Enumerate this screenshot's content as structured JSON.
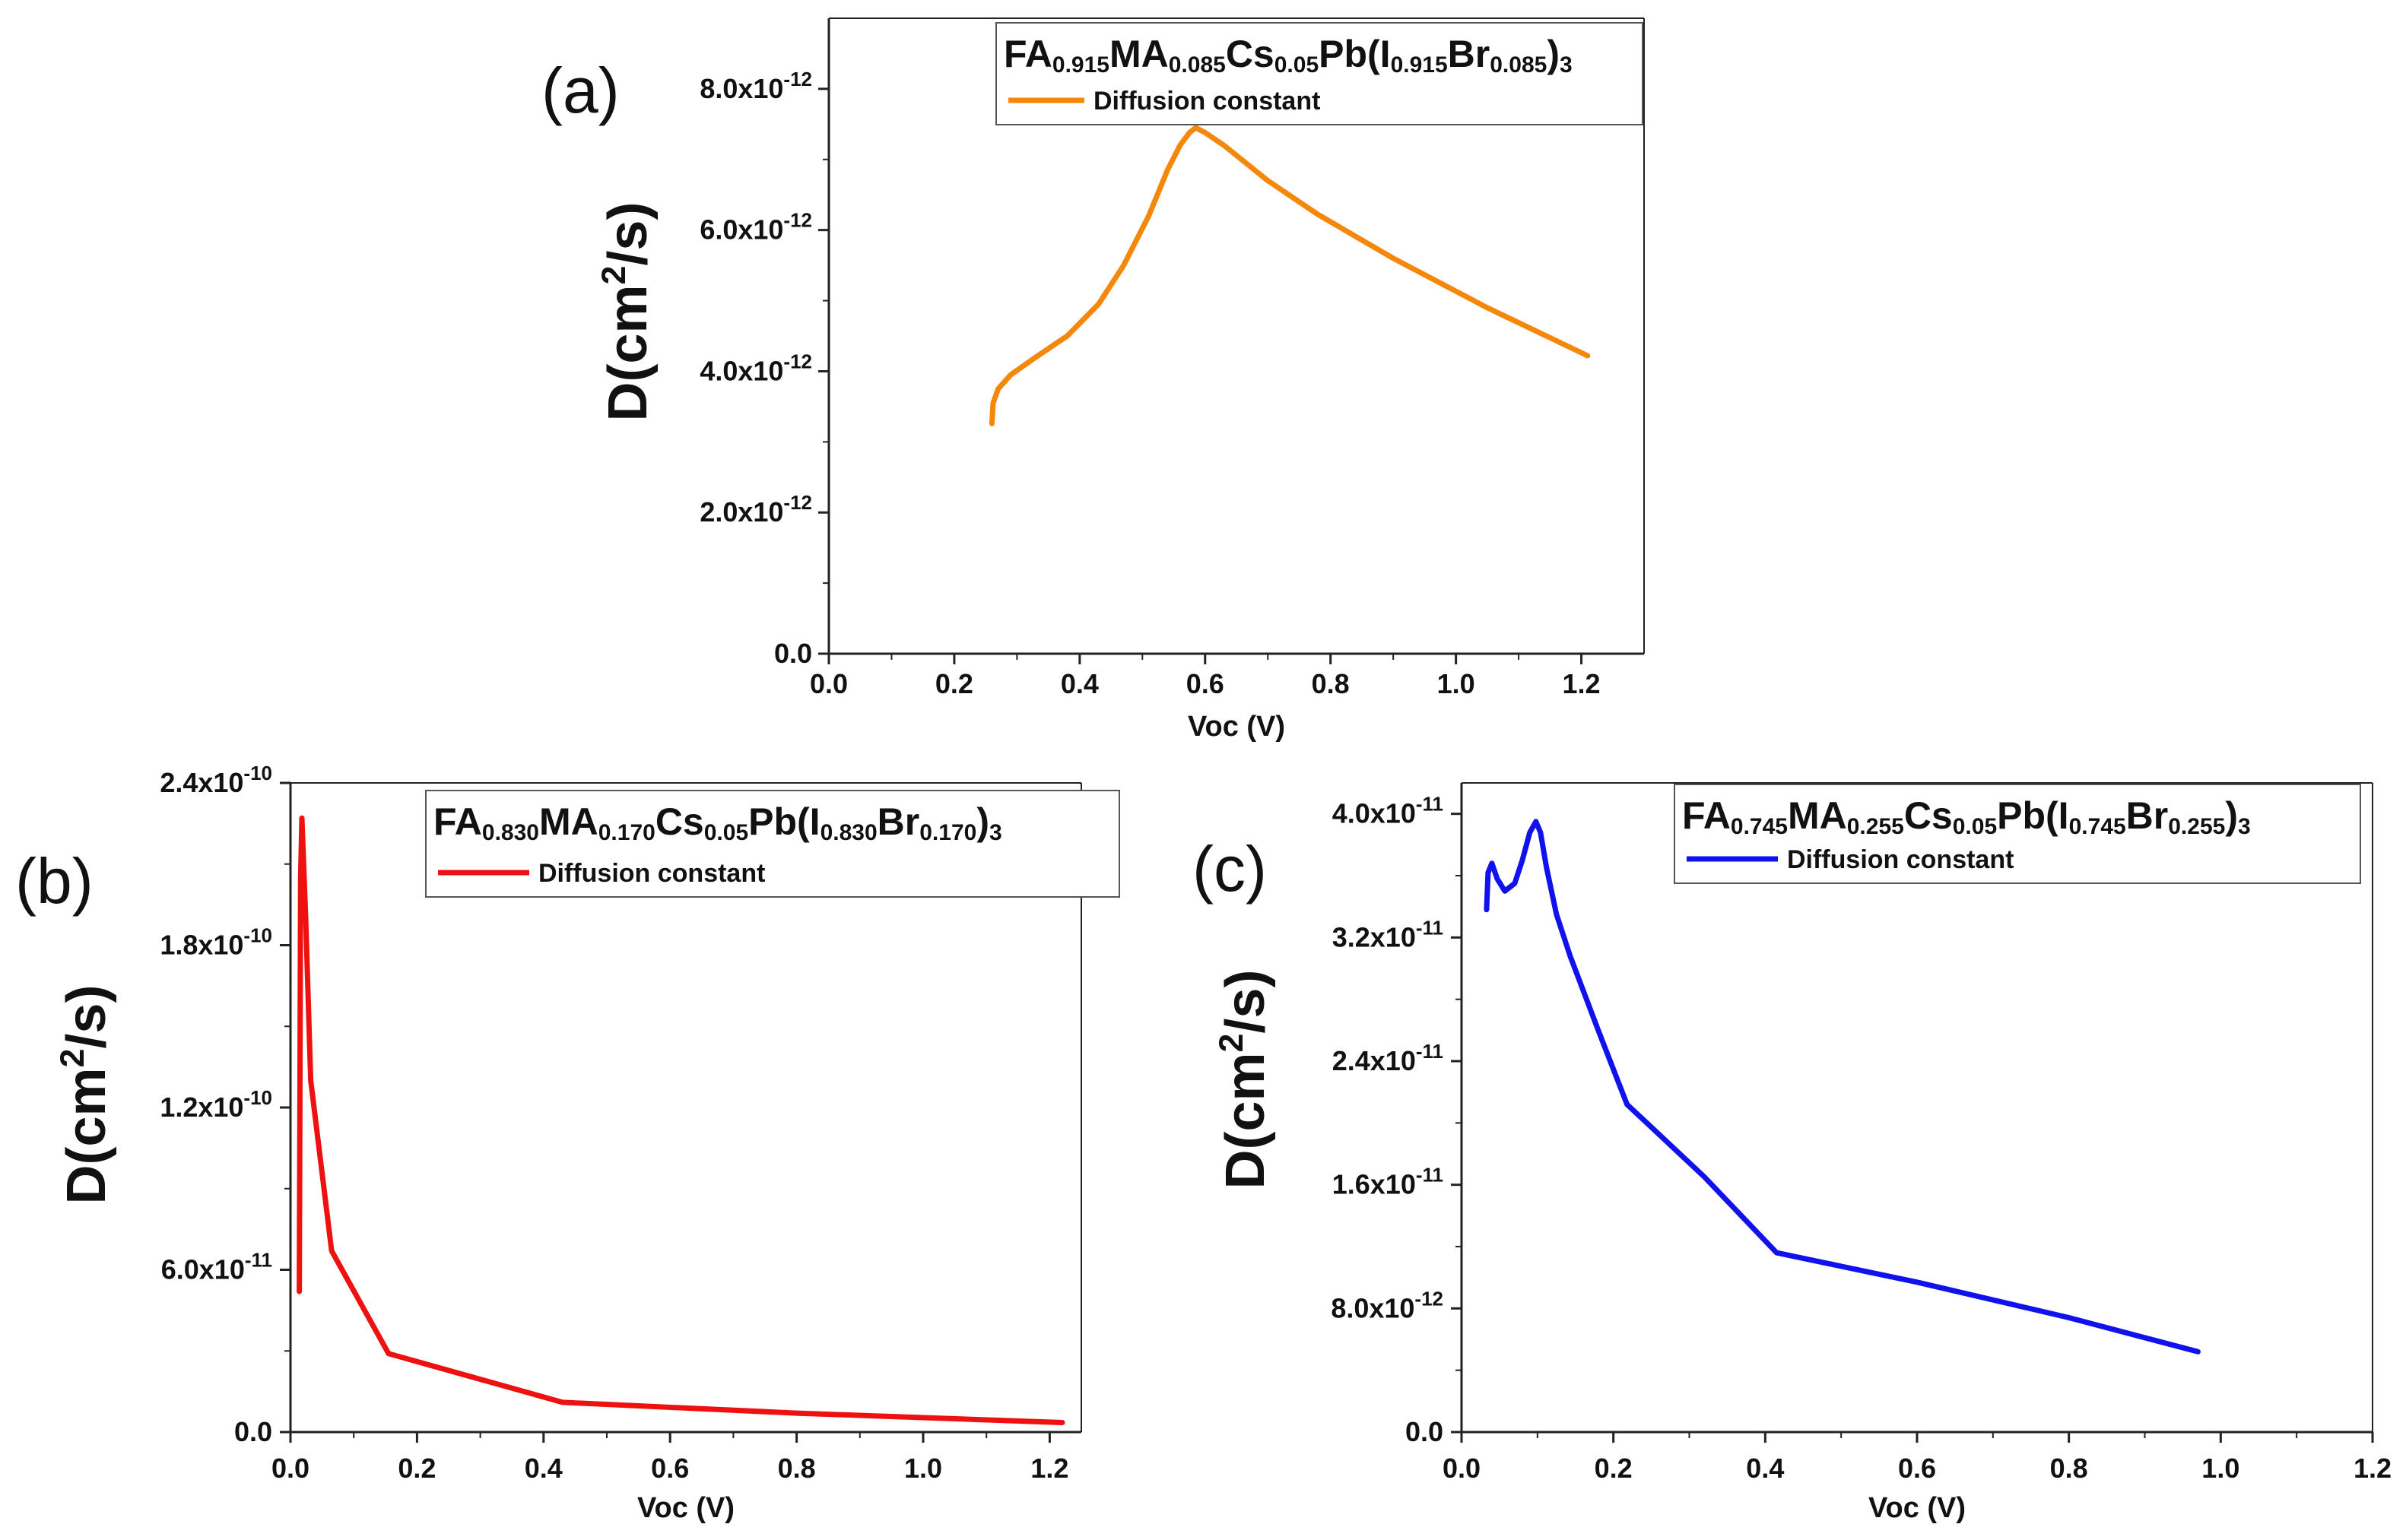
{
  "figure_name": "diffusion-constant-panels",
  "chart_data": [
    {
      "type": "line",
      "panel": "(a)",
      "composition": {
        "segments": [
          {
            "t": "FA"
          },
          {
            "t": "0.915",
            "sub": true
          },
          {
            "t": "MA"
          },
          {
            "t": "0.085",
            "sub": true
          },
          {
            "t": "Cs"
          },
          {
            "t": "0.05",
            "sub": true
          },
          {
            "t": "Pb(I"
          },
          {
            "t": "0.915",
            "sub": true
          },
          {
            "t": "Br"
          },
          {
            "t": "0.085",
            "sub": true
          },
          {
            "t": ")"
          },
          {
            "t": "3",
            "sub": true
          }
        ]
      },
      "legend_label": "Diffusion constant",
      "color": "#f5870a",
      "xlabel": "Voc (V)",
      "ylabel": {
        "base": "D(cm",
        "sup": "2",
        "tail": "/s)"
      },
      "xlim": [
        0,
        1.3
      ],
      "ylim": [
        0,
        9e-12
      ],
      "xticks": [
        0.0,
        0.2,
        0.4,
        0.6,
        0.8,
        1.0,
        1.2
      ],
      "xtick_labels": [
        "0.0",
        "0.2",
        "0.4",
        "0.6",
        "0.8",
        "1.0",
        "1.2"
      ],
      "yticks": [
        0,
        2e-12,
        4e-12,
        6e-12,
        8e-12
      ],
      "ytick_labels": [
        {
          "mant": "0.0",
          "exp": ""
        },
        {
          "mant": "2.0x10",
          "exp": "-12"
        },
        {
          "mant": "4.0x10",
          "exp": "-12"
        },
        {
          "mant": "6.0x10",
          "exp": "-12"
        },
        {
          "mant": "8.0x10",
          "exp": "-12"
        }
      ],
      "series": [
        {
          "name": "Diffusion constant",
          "x": [
            0.26,
            0.262,
            0.27,
            0.29,
            0.33,
            0.38,
            0.43,
            0.47,
            0.51,
            0.54,
            0.56,
            0.575,
            0.585,
            0.6,
            0.63,
            0.7,
            0.78,
            0.9,
            1.05,
            1.21
          ],
          "y": [
            3.26e-12,
            3.55e-12,
            3.75e-12,
            3.95e-12,
            4.2e-12,
            4.5e-12,
            4.95e-12,
            5.5e-12,
            6.2e-12,
            6.85e-12,
            7.2e-12,
            7.38e-12,
            7.45e-12,
            7.38e-12,
            7.2e-12,
            6.7e-12,
            6.22e-12,
            5.6e-12,
            4.9e-12,
            4.22e-12
          ]
        }
      ]
    },
    {
      "type": "line",
      "panel": "(b)",
      "composition": {
        "segments": [
          {
            "t": "FA"
          },
          {
            "t": "0.830",
            "sub": true
          },
          {
            "t": "MA"
          },
          {
            "t": "0.170",
            "sub": true
          },
          {
            "t": "Cs"
          },
          {
            "t": "0.05",
            "sub": true
          },
          {
            "t": "Pb(I"
          },
          {
            "t": "0.830",
            "sub": true
          },
          {
            "t": "Br"
          },
          {
            "t": "0.170",
            "sub": true
          },
          {
            "t": ")"
          },
          {
            "t": "3",
            "sub": true
          }
        ]
      },
      "legend_label": "Diffusion constant",
      "color": "#ee1111",
      "xlabel": "Voc (V)",
      "ylabel": {
        "base": "D(cm",
        "sup": "2",
        "tail": "/s)"
      },
      "xlim": [
        0,
        1.25
      ],
      "ylim": [
        0,
        2.4e-10
      ],
      "xticks": [
        0.0,
        0.2,
        0.4,
        0.6,
        0.8,
        1.0,
        1.2
      ],
      "xtick_labels": [
        "0.0",
        "0.2",
        "0.4",
        "0.6",
        "0.8",
        "1.0",
        "1.2"
      ],
      "yticks": [
        0,
        6e-11,
        1.2e-10,
        1.8e-10,
        2.4e-10
      ],
      "ytick_labels": [
        {
          "mant": "0.0",
          "exp": ""
        },
        {
          "mant": "6.0x10",
          "exp": "-11"
        },
        {
          "mant": "1.2x10",
          "exp": "-10"
        },
        {
          "mant": "1.8x10",
          "exp": "-10"
        },
        {
          "mant": "2.4x10",
          "exp": "-10"
        }
      ],
      "series": [
        {
          "name": "Diffusion constant",
          "x": [
            0.014,
            0.016,
            0.018,
            0.024,
            0.032,
            0.065,
            0.155,
            0.43,
            0.8,
            1.22
          ],
          "y": [
            5.2e-11,
            2.05e-10,
            2.27e-10,
            1.9e-10,
            1.3e-10,
            6.7e-11,
            2.9e-11,
            1.1e-11,
            7e-12,
            3.5e-12
          ]
        }
      ]
    },
    {
      "type": "line",
      "panel": "(c)",
      "composition": {
        "segments": [
          {
            "t": "FA"
          },
          {
            "t": "0.745",
            "sub": true
          },
          {
            "t": "MA"
          },
          {
            "t": "0.255",
            "sub": true
          },
          {
            "t": "Cs"
          },
          {
            "t": "0.05",
            "sub": true
          },
          {
            "t": "Pb(I"
          },
          {
            "t": "0.745",
            "sub": true
          },
          {
            "t": "Br"
          },
          {
            "t": "0.255",
            "sub": true
          },
          {
            "t": ")"
          },
          {
            "t": "3",
            "sub": true
          }
        ]
      },
      "legend_label": "Diffusion constant",
      "color": "#1111ee",
      "xlabel": "Voc (V)",
      "ylabel": {
        "base": "D(cm",
        "sup": "2",
        "tail": "/s)"
      },
      "xlim": [
        0,
        1.2
      ],
      "ylim": [
        0,
        4.2e-11
      ],
      "xticks": [
        0.0,
        0.2,
        0.4,
        0.6,
        0.8,
        1.0,
        1.2
      ],
      "xtick_labels": [
        "0.0",
        "0.2",
        "0.4",
        "0.6",
        "0.8",
        "1.0",
        "1.2"
      ],
      "yticks": [
        0,
        8e-12,
        1.6e-11,
        2.4e-11,
        3.2e-11,
        4e-11
      ],
      "ytick_labels": [
        {
          "mant": "0.0",
          "exp": ""
        },
        {
          "mant": "8.0x10",
          "exp": "-12"
        },
        {
          "mant": "1.6x10",
          "exp": "-11"
        },
        {
          "mant": "2.4x10",
          "exp": "-11"
        },
        {
          "mant": "3.2x10",
          "exp": "-11"
        },
        {
          "mant": "4.0x10",
          "exp": "-11"
        }
      ],
      "series": [
        {
          "name": "Diffusion constant",
          "x": [
            0.033,
            0.035,
            0.04,
            0.047,
            0.057,
            0.07,
            0.08,
            0.09,
            0.098,
            0.104,
            0.112,
            0.125,
            0.143,
            0.18,
            0.218,
            0.32,
            0.415,
            0.6,
            0.8,
            0.97
          ],
          "y": [
            3.38e-11,
            3.62e-11,
            3.68e-11,
            3.58e-11,
            3.5e-11,
            3.55e-11,
            3.7e-11,
            3.88e-11,
            3.95e-11,
            3.88e-11,
            3.65e-11,
            3.35e-11,
            3.08e-11,
            2.6e-11,
            2.12e-11,
            1.65e-11,
            1.16e-11,
            9.7e-12,
            7.4e-12,
            5.2e-12
          ]
        }
      ]
    }
  ]
}
